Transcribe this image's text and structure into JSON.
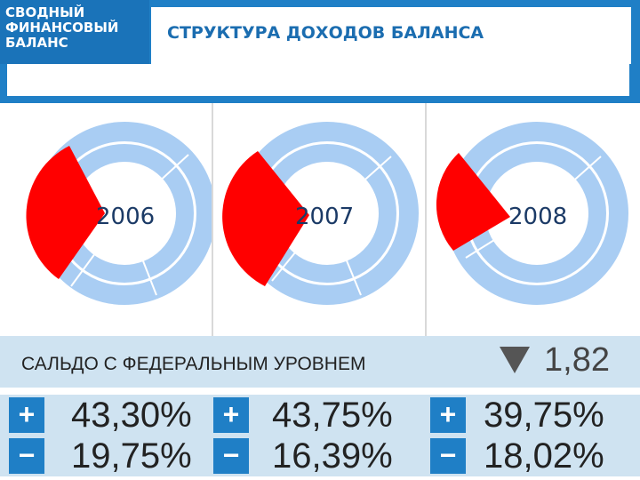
{
  "header": {
    "logo_lines": [
      "СВОДНЫЙ",
      "ФИНАНСОВЫЙ",
      "БАЛАНС"
    ],
    "title": "СТРУКТУРА ДОХОДОВ БАЛАНСА"
  },
  "charts": [
    {
      "year": "2006"
    },
    {
      "year": "2007"
    },
    {
      "year": "2008"
    }
  ],
  "saldo": {
    "label": "САЛЬДО С ФЕДЕРАЛЬНЫМ УРОВНЕМ",
    "value": "1,82",
    "arrow": "down-triangle-icon"
  },
  "rows": {
    "plus": {
      "sign": "+",
      "values": [
        "43,30%",
        "43,75%",
        "39,75%"
      ]
    },
    "minus": {
      "sign": "−",
      "values": [
        "19,75%",
        "16,39%",
        "18,02%"
      ]
    }
  },
  "colors": {
    "accent": "#1f7fc6",
    "ring": "#a9cdf3",
    "highlight": "#ff0000",
    "band": "#cfe3f1"
  }
}
